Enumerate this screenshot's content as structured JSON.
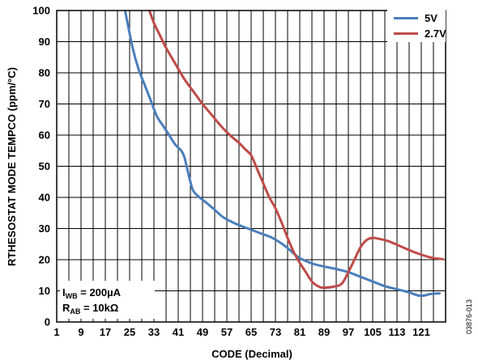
{
  "chart_data": {
    "type": "line",
    "title": "",
    "xlabel": "CODE (Decimal)",
    "ylabel": "RTHESOSTAT MODE TEMPCO (ppm/°C)",
    "xlim": [
      1,
      129
    ],
    "ylim": [
      0,
      100
    ],
    "x_ticks": [
      "1",
      "9",
      "17",
      "25",
      "33",
      "41",
      "49",
      "57",
      "65",
      "73",
      "81",
      "89",
      "97",
      "105",
      "113",
      "121"
    ],
    "y_ticks": [
      "0",
      "10",
      "20",
      "30",
      "40",
      "50",
      "60",
      "70",
      "80",
      "90",
      "100"
    ],
    "grid": true,
    "legend_position": "top-right",
    "series": [
      {
        "name": "5V",
        "color": "#4a7ebb",
        "points": [
          [
            23.5,
            100
          ],
          [
            26,
            88
          ],
          [
            28,
            81
          ],
          [
            30,
            76
          ],
          [
            32,
            71
          ],
          [
            34,
            66
          ],
          [
            36,
            63
          ],
          [
            38,
            60
          ],
          [
            40,
            57
          ],
          [
            42,
            55
          ],
          [
            43,
            53
          ],
          [
            44,
            49
          ],
          [
            45,
            45
          ],
          [
            46,
            42
          ],
          [
            48,
            40
          ],
          [
            50,
            38.5
          ],
          [
            53,
            36
          ],
          [
            56,
            33.5
          ],
          [
            60,
            31.5
          ],
          [
            64,
            30
          ],
          [
            68,
            28.5
          ],
          [
            72,
            27
          ],
          [
            76,
            24.5
          ],
          [
            79,
            22
          ],
          [
            81,
            20.5
          ],
          [
            85,
            18.8
          ],
          [
            89,
            17.8
          ],
          [
            93,
            17
          ],
          [
            97,
            16
          ],
          [
            101,
            14.5
          ],
          [
            105,
            13
          ],
          [
            109,
            11.5
          ],
          [
            113,
            10.5
          ],
          [
            117,
            9.5
          ],
          [
            120,
            8.5
          ],
          [
            122,
            8.5
          ],
          [
            124,
            9
          ],
          [
            127,
            9.2
          ]
        ]
      },
      {
        "name": "2.7V",
        "color": "#be4b48",
        "points": [
          [
            31.5,
            100
          ],
          [
            33,
            96
          ],
          [
            35,
            92
          ],
          [
            37,
            88
          ],
          [
            40,
            83
          ],
          [
            43,
            78
          ],
          [
            46,
            74
          ],
          [
            49,
            70
          ],
          [
            52,
            66.5
          ],
          [
            55,
            63
          ],
          [
            58,
            60
          ],
          [
            61,
            57.5
          ],
          [
            63,
            55.5
          ],
          [
            65,
            53.5
          ],
          [
            67,
            49
          ],
          [
            69,
            44.5
          ],
          [
            71,
            40
          ],
          [
            73,
            36.5
          ],
          [
            75,
            32
          ],
          [
            77,
            27
          ],
          [
            79,
            22.5
          ],
          [
            81,
            19
          ],
          [
            83,
            16
          ],
          [
            85,
            13
          ],
          [
            87,
            11.5
          ],
          [
            89,
            11
          ],
          [
            93,
            11.5
          ],
          [
            95,
            12.5
          ],
          [
            97,
            16
          ],
          [
            99,
            20
          ],
          [
            101,
            24
          ],
          [
            103,
            26.3
          ],
          [
            105,
            27
          ],
          [
            107,
            26.7
          ],
          [
            110,
            26
          ],
          [
            113,
            24.8
          ],
          [
            116,
            23.5
          ],
          [
            119,
            22.3
          ],
          [
            122,
            21.3
          ],
          [
            125,
            20.5
          ],
          [
            128,
            20.2
          ]
        ]
      }
    ],
    "annotations": {
      "line1_main": "I",
      "line1_sub": "WB",
      "line1_rest": " = 200µA",
      "line2_main": "R",
      "line2_sub": "AB",
      "line2_rest": " = 10kΩ"
    }
  },
  "figure_code": "03876-013"
}
